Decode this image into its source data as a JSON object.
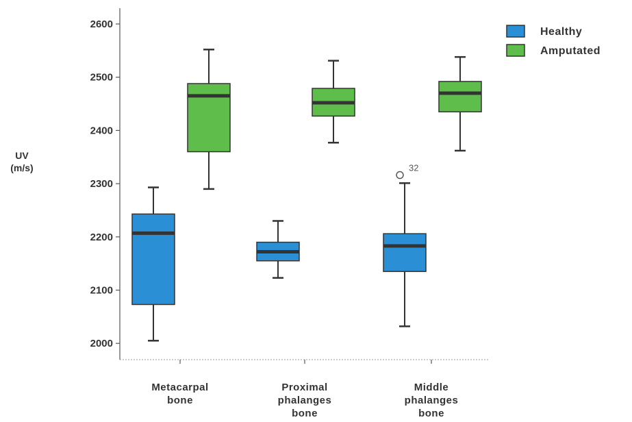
{
  "chart_data": {
    "type": "boxplot",
    "ylabel": [
      "UV",
      "(m/s)"
    ],
    "ylim": [
      1990,
      2625
    ],
    "yticks": [
      2000,
      2100,
      2200,
      2300,
      2400,
      2500,
      2600
    ],
    "categories": [
      [
        "Metacarpal",
        "bone"
      ],
      [
        "Proximal",
        "phalanges",
        "bone"
      ],
      [
        "Middle",
        "phalanges",
        "bone"
      ]
    ],
    "legend": {
      "position": "top-right",
      "entries": [
        "Healthy",
        "Amputated"
      ]
    },
    "series": [
      {
        "name": "Healthy",
        "color": "#2b8fd6",
        "boxes": [
          {
            "min": 2005,
            "q1": 2073,
            "median": 2207,
            "q3": 2243,
            "max": 2293
          },
          {
            "min": 2123,
            "q1": 2155,
            "median": 2172,
            "q3": 2190,
            "max": 2230
          },
          {
            "min": 2032,
            "q1": 2135,
            "median": 2183,
            "q3": 2206,
            "max": 2301
          }
        ],
        "outliers": [
          {
            "category": 2,
            "value": 2320,
            "label": "32"
          }
        ]
      },
      {
        "name": "Amputated",
        "color": "#5fbd4c",
        "boxes": [
          {
            "min": 2290,
            "q1": 2360,
            "median": 2465,
            "q3": 2488,
            "max": 2552
          },
          {
            "min": 2377,
            "q1": 2427,
            "median": 2452,
            "q3": 2479,
            "max": 2531
          },
          {
            "min": 2362,
            "q1": 2435,
            "median": 2470,
            "q3": 2492,
            "max": 2538
          }
        ],
        "outliers": []
      }
    ]
  }
}
